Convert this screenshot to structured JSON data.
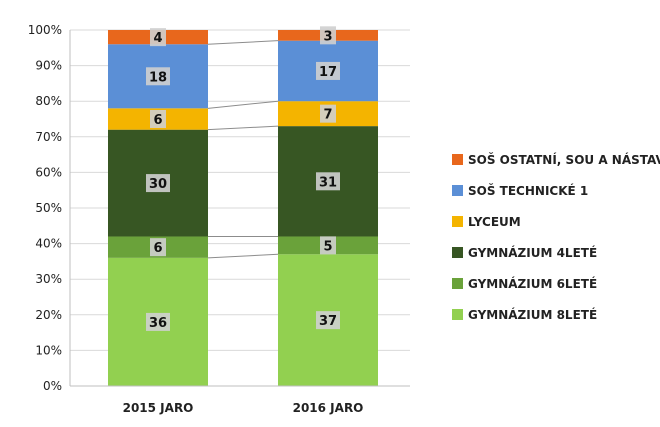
{
  "chart_data": {
    "type": "bar",
    "stacked": true,
    "normalized": true,
    "categories": [
      "2015 JARO",
      "2016 JARO"
    ],
    "series": [
      {
        "name": "GYMNÁZIUM 8LETÉ",
        "values": [
          36,
          37
        ],
        "color": "#92d050"
      },
      {
        "name": "GYMNÁZIUM 6LETÉ",
        "values": [
          6,
          5
        ],
        "color": "#6aa23a"
      },
      {
        "name": "GYMNÁZIUM 4LETÉ",
        "values": [
          30,
          31
        ],
        "color": "#375623"
      },
      {
        "name": "LYCEUM",
        "values": [
          6,
          7
        ],
        "color": "#f4b400"
      },
      {
        "name": "SOŠ TECHNICKÉ 1",
        "values": [
          18,
          17
        ],
        "color": "#5b8fd6"
      },
      {
        "name": "SOŠ OSTATNÍ, SOU A NÁSTAVBY",
        "values": [
          4,
          3
        ],
        "color": "#e8671c"
      }
    ],
    "yticks": [
      "0%",
      "10%",
      "20%",
      "30%",
      "40%",
      "50%",
      "60%",
      "70%",
      "80%",
      "90%",
      "100%"
    ],
    "ylim": [
      0,
      100
    ],
    "grid": true,
    "legend_position": "right"
  }
}
